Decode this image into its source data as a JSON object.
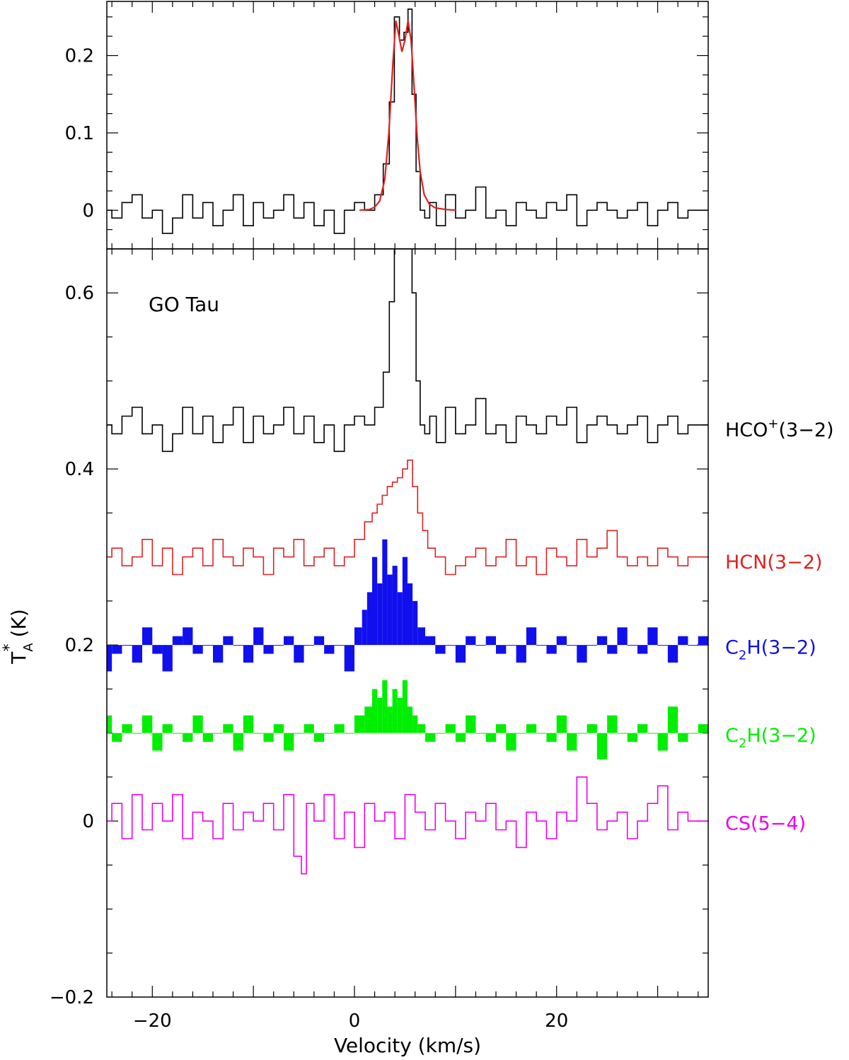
{
  "chart_data": [
    {
      "panel": "top",
      "type": "line",
      "xlim": [
        -24.5,
        35
      ],
      "ylim": [
        -0.05,
        0.27
      ],
      "yticks": [
        0,
        0.1,
        0.2
      ],
      "ytick_labels": [
        "0",
        "0.1",
        "0.2"
      ],
      "grid": false,
      "series": [
        {
          "style": "step",
          "color": "#000000",
          "offset": 0,
          "x": [
            -24.5,
            -23.5,
            -22.5,
            -21.5,
            -20.5,
            -19.5,
            -18.5,
            -17.5,
            -16.5,
            -15.5,
            -14.5,
            -13.5,
            -12.5,
            -11.5,
            -10.5,
            -9.5,
            -8.5,
            -7.5,
            -6.5,
            -5.5,
            -4.5,
            -3.5,
            -2.5,
            -1.5,
            -0.5,
            0.5,
            1.5,
            2.5,
            3.2,
            3.7,
            4.2,
            4.7,
            5.1,
            5.5,
            5.9,
            6.3,
            6.7,
            7.2,
            7.7,
            8.5,
            9.5,
            10.5,
            11.5,
            12.5,
            13.5,
            14.5,
            15.5,
            16.5,
            17.5,
            18.5,
            19.5,
            20.5,
            21.5,
            22.5,
            23.5,
            24.5,
            25.5,
            26.5,
            27.5,
            28.5,
            29.5,
            30.5,
            31.5,
            32.5,
            33.5,
            34.5
          ],
          "y": [
            0.0,
            -0.01,
            0.01,
            0.02,
            -0.01,
            0.0,
            -0.03,
            -0.01,
            0.02,
            -0.01,
            0.01,
            -0.02,
            0.0,
            0.02,
            -0.02,
            0.01,
            -0.01,
            0.0,
            0.02,
            -0.01,
            0.01,
            -0.02,
            0.0,
            -0.03,
            0.0,
            0.01,
            0.0,
            0.02,
            0.06,
            0.14,
            0.25,
            0.22,
            0.23,
            0.26,
            0.15,
            0.05,
            0.0,
            -0.01,
            0.01,
            -0.02,
            0.02,
            -0.01,
            0.0,
            0.03,
            -0.01,
            0.0,
            -0.02,
            0.01,
            0.0,
            -0.01,
            0.01,
            0.0,
            0.02,
            -0.02,
            0.0,
            0.01,
            0.0,
            -0.01,
            0.0,
            0.01,
            -0.02,
            0.0,
            0.01,
            -0.01,
            0.0,
            0.0
          ]
        },
        {
          "style": "smooth",
          "color": "#dd2222",
          "offset": 0,
          "x": [
            0.5,
            1.5,
            2.0,
            2.5,
            3.0,
            3.4,
            3.8,
            4.1,
            4.4,
            4.7,
            5.0,
            5.3,
            5.6,
            5.9,
            6.2,
            6.5,
            6.9,
            7.4,
            8.0,
            9.0,
            10.0
          ],
          "y": [
            0.0,
            0.001,
            0.004,
            0.012,
            0.04,
            0.1,
            0.19,
            0.245,
            0.225,
            0.205,
            0.22,
            0.245,
            0.22,
            0.16,
            0.095,
            0.05,
            0.02,
            0.008,
            0.003,
            0.001,
            0.0
          ]
        }
      ]
    },
    {
      "panel": "bottom",
      "type": "line",
      "title": "GO Tau",
      "xlabel": "Velocity (km/s)",
      "ylabel_main": "T",
      "ylabel_sup": "*",
      "ylabel_sub": "A",
      "ylabel_unit": " (K)",
      "xlim": [
        -24.5,
        35
      ],
      "ylim": [
        -0.2,
        0.65
      ],
      "xticks": [
        -20,
        0,
        20
      ],
      "xtick_labels": [
        "−20",
        "0",
        "20"
      ],
      "yticks": [
        -0.2,
        0,
        0.2,
        0.4,
        0.6
      ],
      "ytick_labels": [
        "−0.2",
        "0",
        "0.2",
        "0.4",
        "0.6"
      ],
      "grid": false,
      "series": [
        {
          "name": "HCO⁺(3−2)",
          "label_main": "HCO",
          "label_sup": "+",
          "label_rest": "(3−2)",
          "style": "step",
          "color": "#000000",
          "offset": 0.45,
          "label_y": 0.445,
          "x": [
            -24.5,
            -23.5,
            -22.5,
            -21.5,
            -20.5,
            -19.5,
            -18.5,
            -17.5,
            -16.5,
            -15.5,
            -14.5,
            -13.5,
            -12.5,
            -11.5,
            -10.5,
            -9.5,
            -8.5,
            -7.5,
            -6.5,
            -5.5,
            -4.5,
            -3.5,
            -2.5,
            -1.5,
            -0.5,
            0.5,
            1.5,
            2.5,
            3.2,
            3.7,
            4.2,
            4.7,
            5.1,
            5.5,
            5.9,
            6.3,
            6.7,
            7.2,
            7.7,
            8.5,
            9.5,
            10.5,
            11.5,
            12.5,
            13.5,
            14.5,
            15.5,
            16.5,
            17.5,
            18.5,
            19.5,
            20.5,
            21.5,
            22.5,
            23.5,
            24.5,
            25.5,
            26.5,
            27.5,
            28.5,
            29.5,
            30.5,
            31.5,
            32.5,
            33.5,
            34.5
          ],
          "y": [
            0.0,
            -0.01,
            0.01,
            0.02,
            -0.01,
            0.0,
            -0.03,
            -0.01,
            0.02,
            -0.01,
            0.01,
            -0.02,
            0.0,
            0.02,
            -0.02,
            0.01,
            -0.01,
            0.0,
            0.02,
            -0.01,
            0.01,
            -0.02,
            0.0,
            -0.03,
            0.0,
            0.01,
            0.0,
            0.02,
            0.06,
            0.14,
            0.25,
            0.22,
            0.23,
            0.26,
            0.15,
            0.05,
            0.0,
            -0.01,
            0.01,
            -0.02,
            0.02,
            -0.01,
            0.0,
            0.03,
            -0.01,
            0.0,
            -0.02,
            0.01,
            0.0,
            -0.01,
            0.01,
            0.0,
            0.02,
            -0.02,
            0.0,
            0.01,
            0.0,
            -0.01,
            0.0,
            0.01,
            -0.02,
            0.0,
            0.01,
            -0.01,
            0.0,
            0.0
          ]
        },
        {
          "name": "HCN(3−2)",
          "label_main": "HCN(3−2)",
          "style": "step",
          "color": "#dd2222",
          "offset": 0.3,
          "label_y": 0.295,
          "x": [
            -24.5,
            -23.5,
            -22.5,
            -21.5,
            -20.5,
            -19.5,
            -18.5,
            -17.5,
            -16.5,
            -15.5,
            -14.5,
            -13.5,
            -12.5,
            -11.5,
            -10.5,
            -9.5,
            -8.5,
            -7.5,
            -6.5,
            -5.5,
            -4.5,
            -3.5,
            -2.5,
            -1.5,
            -0.5,
            0.5,
            1.5,
            2.0,
            2.5,
            3.0,
            3.5,
            4.0,
            4.5,
            5.0,
            5.5,
            6.0,
            6.5,
            7.0,
            7.5,
            8.5,
            9.5,
            10.5,
            11.5,
            12.5,
            13.5,
            14.5,
            15.5,
            16.5,
            17.5,
            18.5,
            19.5,
            20.5,
            21.5,
            22.5,
            23.5,
            24.5,
            25.5,
            26.5,
            27.5,
            28.5,
            29.5,
            30.5,
            31.5,
            32.5,
            33.5,
            34.5
          ],
          "y": [
            0.0,
            0.01,
            -0.01,
            0.0,
            0.02,
            -0.01,
            0.01,
            -0.02,
            0.0,
            0.01,
            -0.01,
            0.02,
            0.0,
            -0.01,
            0.01,
            0.0,
            -0.02,
            0.01,
            0.0,
            0.02,
            -0.01,
            0.0,
            0.01,
            -0.01,
            0.0,
            0.02,
            0.04,
            0.05,
            0.06,
            0.07,
            0.08,
            0.085,
            0.09,
            0.1,
            0.11,
            0.08,
            0.05,
            0.03,
            0.01,
            0.0,
            -0.02,
            -0.01,
            0.0,
            0.01,
            -0.01,
            0.0,
            0.02,
            -0.01,
            0.0,
            -0.02,
            0.01,
            0.0,
            -0.01,
            0.02,
            0.0,
            0.01,
            0.03,
            0.0,
            -0.01,
            0.0,
            -0.01,
            0.01,
            0.0,
            -0.01,
            0.0,
            0.0
          ]
        },
        {
          "name": "C2H(3−2)",
          "label_main": "C",
          "label_sub": "2",
          "label_rest": "H(3−2)",
          "style": "filled",
          "color": "#1010ee",
          "offset": 0.2,
          "label_y": 0.198,
          "x": [
            -24.5,
            -23.5,
            -22.5,
            -21.5,
            -20.5,
            -19.5,
            -18.5,
            -17.5,
            -16.5,
            -15.5,
            -14.5,
            -13.5,
            -12.5,
            -11.5,
            -10.5,
            -9.5,
            -8.5,
            -7.5,
            -6.5,
            -5.5,
            -4.5,
            -3.5,
            -2.5,
            -1.5,
            -0.5,
            0.5,
            1.0,
            1.5,
            2.0,
            2.5,
            3.0,
            3.5,
            4.0,
            4.5,
            5.0,
            5.5,
            6.0,
            6.5,
            7.5,
            8.5,
            9.5,
            10.5,
            11.5,
            12.5,
            13.5,
            14.5,
            15.5,
            16.5,
            17.5,
            18.5,
            19.5,
            20.5,
            21.5,
            22.5,
            23.5,
            24.5,
            25.5,
            26.5,
            27.5,
            28.5,
            29.5,
            30.5,
            31.5,
            32.5,
            33.5,
            34.5
          ],
          "y": [
            -0.03,
            -0.01,
            0.0,
            -0.02,
            0.02,
            -0.01,
            -0.03,
            0.01,
            0.02,
            -0.01,
            0.0,
            -0.02,
            0.01,
            0.0,
            -0.02,
            0.02,
            -0.01,
            0.0,
            0.01,
            -0.02,
            0.0,
            0.01,
            -0.01,
            0.0,
            -0.03,
            0.02,
            0.04,
            0.06,
            0.1,
            0.07,
            0.12,
            0.08,
            0.09,
            0.06,
            0.1,
            0.07,
            0.05,
            0.02,
            0.01,
            -0.01,
            0.0,
            -0.02,
            0.01,
            0.0,
            0.01,
            -0.01,
            0.0,
            -0.02,
            0.02,
            0.0,
            -0.01,
            0.01,
            0.0,
            -0.02,
            0.0,
            0.01,
            -0.01,
            0.02,
            0.0,
            -0.01,
            0.02,
            0.0,
            -0.02,
            0.01,
            0.0,
            0.01
          ]
        },
        {
          "name": "C2H(3−2)",
          "label_main": "C",
          "label_sub": "2",
          "label_rest": "H(3−2)",
          "style": "filled",
          "color": "#00ee00",
          "offset": 0.1,
          "label_y": 0.098,
          "x": [
            -24.5,
            -23.5,
            -22.5,
            -21.5,
            -20.5,
            -19.5,
            -18.5,
            -17.5,
            -16.5,
            -15.5,
            -14.5,
            -13.5,
            -12.5,
            -11.5,
            -10.5,
            -9.5,
            -8.5,
            -7.5,
            -6.5,
            -5.5,
            -4.5,
            -3.5,
            -2.5,
            -1.5,
            -0.5,
            0.5,
            1.5,
            2.0,
            2.5,
            3.0,
            3.5,
            4.0,
            4.5,
            5.0,
            5.5,
            6.0,
            6.5,
            7.5,
            8.5,
            9.5,
            10.5,
            11.5,
            12.5,
            13.5,
            14.5,
            15.5,
            16.5,
            17.5,
            18.5,
            19.5,
            20.5,
            21.5,
            22.5,
            23.5,
            24.5,
            25.5,
            26.5,
            27.5,
            28.5,
            29.5,
            30.5,
            31.5,
            32.5,
            33.5,
            34.5
          ],
          "y": [
            0.02,
            -0.01,
            0.01,
            0.0,
            0.02,
            -0.02,
            0.01,
            0.0,
            -0.01,
            0.02,
            -0.01,
            0.0,
            0.01,
            -0.02,
            0.02,
            0.0,
            -0.01,
            0.01,
            -0.02,
            0.0,
            0.01,
            -0.01,
            0.0,
            0.01,
            0.0,
            0.02,
            0.03,
            0.05,
            0.04,
            0.06,
            0.03,
            0.05,
            0.04,
            0.06,
            0.03,
            0.02,
            0.01,
            -0.01,
            0.0,
            0.01,
            -0.01,
            0.02,
            0.0,
            -0.01,
            0.01,
            -0.02,
            0.0,
            0.01,
            0.0,
            -0.01,
            0.02,
            -0.02,
            0.0,
            0.01,
            -0.03,
            0.02,
            0.0,
            -0.01,
            0.01,
            0.0,
            -0.02,
            0.03,
            -0.01,
            0.0,
            0.01
          ]
        },
        {
          "name": "CS(5−4)",
          "label_main": "CS(5−4)",
          "style": "step",
          "color": "#ee00ee",
          "offset": 0.0,
          "label_y": -0.002,
          "x": [
            -24.5,
            -23.5,
            -22.5,
            -21.5,
            -20.5,
            -19.5,
            -18.5,
            -17.5,
            -16.5,
            -15.5,
            -14.5,
            -13.5,
            -12.5,
            -11.5,
            -10.5,
            -9.5,
            -8.5,
            -7.5,
            -6.5,
            -5.5,
            -5.0,
            -4.5,
            -3.5,
            -2.5,
            -1.5,
            -0.5,
            0.5,
            1.5,
            2.5,
            3.5,
            4.5,
            5.5,
            6.5,
            7.5,
            8.5,
            9.5,
            10.5,
            11.5,
            12.5,
            13.5,
            14.5,
            15.5,
            16.5,
            17.5,
            18.5,
            19.5,
            20.5,
            21.5,
            22.5,
            23.5,
            24.5,
            25.5,
            26.5,
            27.5,
            28.5,
            29.5,
            30.5,
            31.5,
            32.5,
            33.5,
            34.5
          ],
          "y": [
            0.0,
            0.02,
            -0.02,
            0.03,
            -0.01,
            0.02,
            0.0,
            0.03,
            -0.02,
            0.01,
            0.0,
            -0.02,
            0.02,
            -0.01,
            0.01,
            0.0,
            0.02,
            -0.01,
            0.03,
            -0.04,
            -0.06,
            0.02,
            0.0,
            0.03,
            -0.02,
            0.01,
            -0.03,
            0.02,
            0.0,
            0.01,
            -0.02,
            0.03,
            0.01,
            -0.01,
            0.02,
            0.0,
            -0.02,
            0.01,
            0.0,
            0.02,
            -0.01,
            0.0,
            -0.03,
            0.01,
            0.0,
            -0.02,
            0.01,
            0.0,
            0.05,
            0.02,
            -0.01,
            0.0,
            0.01,
            -0.02,
            0.0,
            0.02,
            0.04,
            -0.01,
            0.01,
            0.0,
            0.0
          ]
        }
      ]
    }
  ]
}
